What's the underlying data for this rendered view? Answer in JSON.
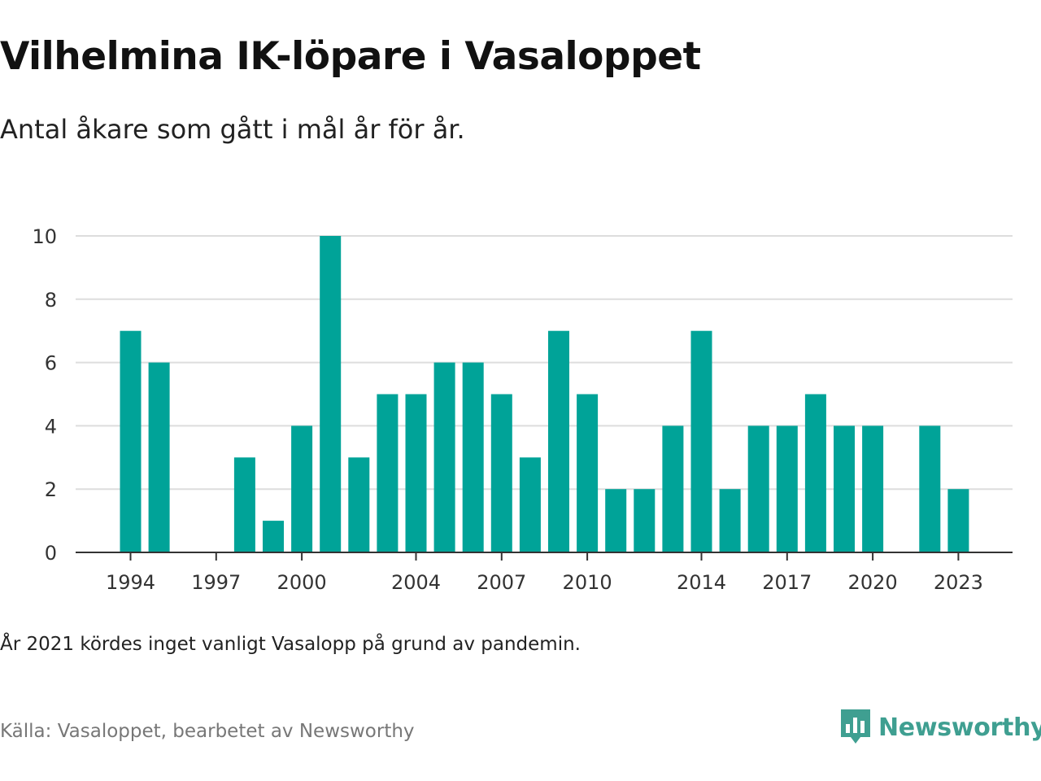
{
  "title": "Vilhelmina IK-löpare i Vasaloppet",
  "subtitle": "Antal åkare som gått i mål år för år.",
  "note": "År 2021 kördes inget vanligt Vasalopp på grund av pandemin.",
  "source": "Källa: Vasaloppet, bearbetet av Newsworthy",
  "logo": {
    "text": "Newsworthy",
    "icon": "bar-chart-speech-bubble-icon",
    "color": "#3f9f91"
  },
  "colors": {
    "bar": "#00a398",
    "grid": "#dddddd",
    "axis": "#333333"
  },
  "chart_data": {
    "type": "bar",
    "title": "",
    "xlabel": "",
    "ylabel": "",
    "ylim": [
      0,
      10
    ],
    "yticks": [
      0,
      2,
      4,
      6,
      8,
      10
    ],
    "xticks": [
      1994,
      1997,
      2000,
      2004,
      2007,
      2010,
      2014,
      2017,
      2020,
      2023
    ],
    "grid": true,
    "categories": [
      1994,
      1995,
      1996,
      1997,
      1998,
      1999,
      2000,
      2001,
      2002,
      2003,
      2004,
      2005,
      2006,
      2007,
      2008,
      2009,
      2010,
      2011,
      2012,
      2013,
      2014,
      2015,
      2016,
      2017,
      2018,
      2019,
      2020,
      2021,
      2022,
      2023
    ],
    "values": [
      7,
      6,
      0,
      0,
      3,
      1,
      4,
      10,
      3,
      5,
      5,
      6,
      6,
      5,
      3,
      7,
      5,
      2,
      2,
      4,
      7,
      2,
      4,
      4,
      5,
      4,
      4,
      0,
      4,
      2
    ]
  }
}
